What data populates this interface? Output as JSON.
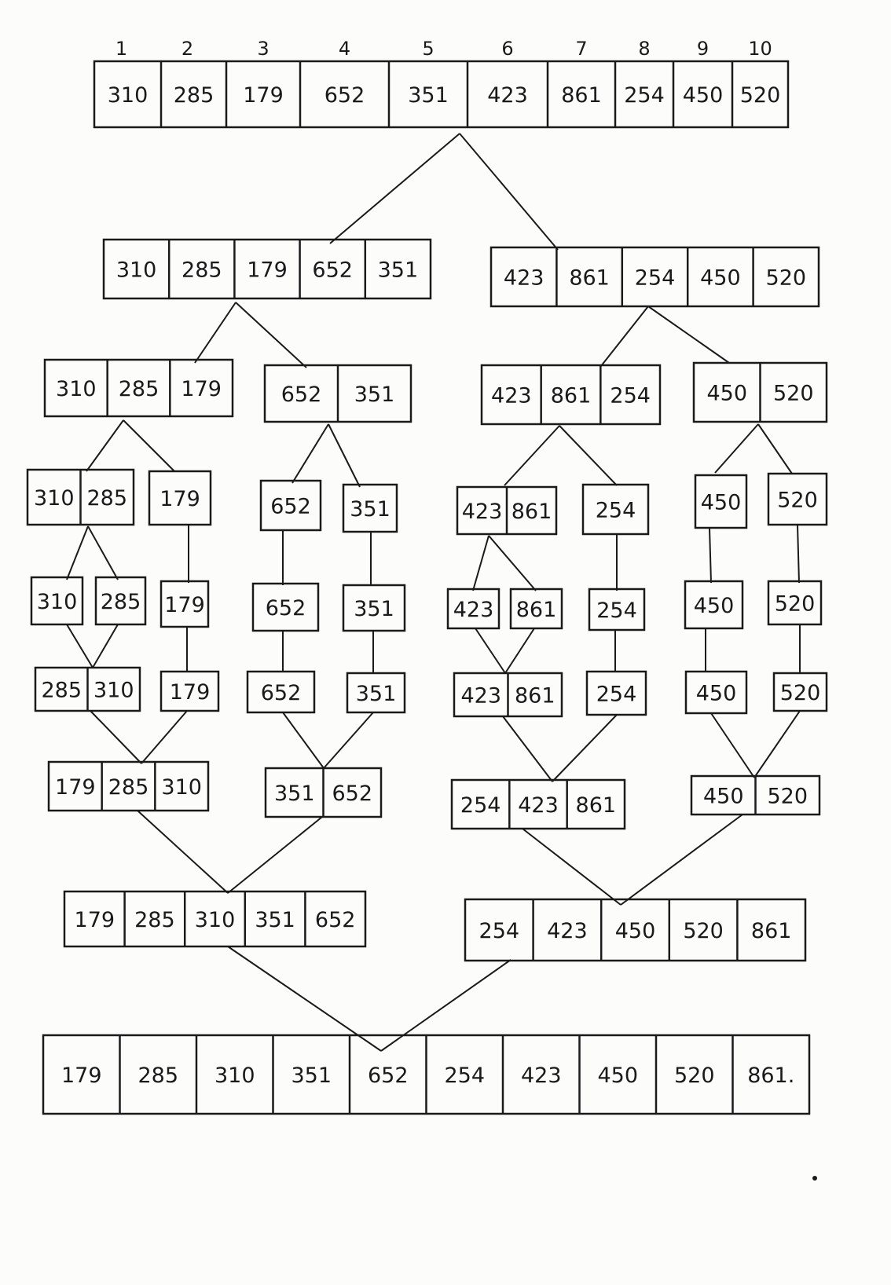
{
  "indices": [
    "1",
    "2",
    "3",
    "4",
    "5",
    "6",
    "7",
    "8",
    "9",
    "10"
  ],
  "levels": [
    [
      [
        "310",
        "285",
        "179",
        "652",
        "351",
        "423",
        "861",
        "254",
        "450",
        "520"
      ]
    ],
    [
      [
        "310",
        "285",
        "179",
        "652",
        "351"
      ],
      [
        "423",
        "861",
        "254",
        "450",
        "520"
      ]
    ],
    [
      [
        "310",
        "285",
        "179"
      ],
      [
        "652",
        "351"
      ],
      [
        "423",
        "861",
        "254"
      ],
      [
        "450",
        "520"
      ]
    ],
    [
      [
        "310",
        "285"
      ],
      [
        "179"
      ],
      [
        "652"
      ],
      [
        "351"
      ],
      [
        "423",
        "861"
      ],
      [
        "254"
      ],
      [
        "450"
      ],
      [
        "520"
      ]
    ],
    [
      [
        "310"
      ],
      [
        "285"
      ],
      [
        "179"
      ],
      [
        "652"
      ],
      [
        "351"
      ],
      [
        "423"
      ],
      [
        "861"
      ],
      [
        "254"
      ],
      [
        "450"
      ],
      [
        "520"
      ]
    ],
    [
      [
        "285",
        "310"
      ],
      [
        "179"
      ],
      [
        "652"
      ],
      [
        "351"
      ],
      [
        "423",
        "861"
      ],
      [
        "254"
      ],
      [
        "450"
      ],
      [
        "520"
      ]
    ],
    [
      [
        "179",
        "285",
        "310"
      ],
      [
        "351",
        "652"
      ],
      [
        "254",
        "423",
        "861"
      ],
      [
        "450",
        "520"
      ]
    ],
    [
      [
        "179",
        "285",
        "310",
        "351",
        "652"
      ],
      [
        "254",
        "423",
        "450",
        "520",
        "861"
      ]
    ],
    [
      [
        "179",
        "285",
        "310",
        "351",
        "652",
        "254",
        "423",
        "450",
        "520",
        "861."
      ]
    ]
  ],
  "colors": {
    "ink": "#1a1a1a",
    "paper": "#fcfcfa"
  }
}
